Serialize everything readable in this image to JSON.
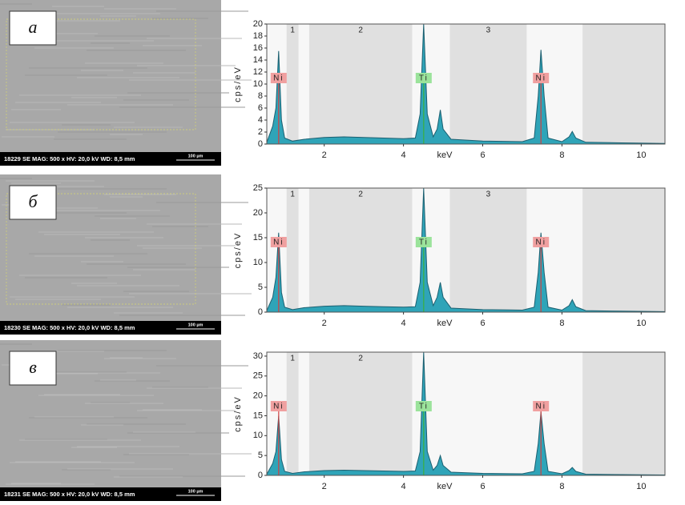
{
  "panels": [
    {
      "label": "а",
      "sem": {
        "caption": "18229 SE MAG: 500 x HV: 20,0 kV WD: 8,5 mm",
        "scale": "100 µm"
      },
      "chart_data": {
        "type": "area",
        "ylabel": "cps/eV",
        "xlabel": "keV",
        "xlim": [
          0.55,
          10.6
        ],
        "ylim": [
          0,
          20
        ],
        "xticks": [
          2,
          4,
          6,
          8,
          10
        ],
        "yticks": [
          0,
          2,
          4,
          6,
          8,
          10,
          12,
          14,
          16,
          18,
          20
        ],
        "color": "#2fa4b8",
        "regions": [
          {
            "label": "1",
            "from": 1.05,
            "to": 1.35
          },
          {
            "label": "2",
            "from": 1.62,
            "to": 4.22
          },
          {
            "label": "3",
            "from": 5.17,
            "to": 7.11
          },
          {
            "label": null,
            "from": 8.52,
            "to": 10.6
          }
        ],
        "peak_labels": [
          {
            "text": "Ni",
            "x": 0.85,
            "color": "#f0a0a0"
          },
          {
            "text": "Ti",
            "x": 4.51,
            "color": "#9be39b"
          },
          {
            "text": "Ni",
            "x": 7.47,
            "color": "#f0a0a0"
          }
        ],
        "x": [
          0.55,
          0.7,
          0.78,
          0.85,
          0.92,
          1.0,
          1.2,
          1.5,
          2.0,
          2.5,
          3.0,
          3.5,
          4.0,
          4.3,
          4.42,
          4.51,
          4.6,
          4.75,
          4.85,
          4.93,
          5.0,
          5.2,
          6.0,
          7.0,
          7.3,
          7.4,
          7.47,
          7.55,
          7.65,
          8.0,
          8.18,
          8.26,
          8.35,
          8.6,
          9.5,
          10.6
        ],
        "values": [
          0.3,
          3,
          6,
          15.5,
          4,
          1,
          0.5,
          0.8,
          1.1,
          1.2,
          1.1,
          1.0,
          0.9,
          1.0,
          5,
          20,
          5,
          1.2,
          2.5,
          5.7,
          2.5,
          0.8,
          0.5,
          0.4,
          1.0,
          8,
          15.7,
          8,
          1.0,
          0.4,
          1.2,
          2.1,
          1.0,
          0.3,
          0.2,
          0.1
        ]
      }
    },
    {
      "label": "б",
      "sem": {
        "caption": "18230 SE MAG: 500 x HV: 20,0 kV WD: 8,5 mm",
        "scale": "100 µm"
      },
      "chart_data": {
        "type": "area",
        "ylabel": "cps/eV",
        "xlabel": "keV",
        "xlim": [
          0.55,
          10.6
        ],
        "ylim": [
          0,
          25
        ],
        "xticks": [
          2,
          4,
          6,
          8,
          10
        ],
        "yticks": [
          0,
          5,
          10,
          15,
          20,
          25
        ],
        "color": "#2fa4b8",
        "regions": [
          {
            "label": "1",
            "from": 1.05,
            "to": 1.35
          },
          {
            "label": "2",
            "from": 1.62,
            "to": 4.22
          },
          {
            "label": "3",
            "from": 5.17,
            "to": 7.11
          },
          {
            "label": null,
            "from": 8.52,
            "to": 10.6
          }
        ],
        "peak_labels": [
          {
            "text": "Ni",
            "x": 0.85,
            "color": "#f0a0a0"
          },
          {
            "text": "Ti",
            "x": 4.51,
            "color": "#9be39b"
          },
          {
            "text": "Ni",
            "x": 7.47,
            "color": "#f0a0a0"
          }
        ],
        "x": [
          0.55,
          0.7,
          0.78,
          0.85,
          0.92,
          1.0,
          1.2,
          1.5,
          2.0,
          2.5,
          3.0,
          3.5,
          4.0,
          4.3,
          4.42,
          4.51,
          4.6,
          4.75,
          4.85,
          4.93,
          5.0,
          5.2,
          6.0,
          7.0,
          7.3,
          7.4,
          7.47,
          7.55,
          7.65,
          8.0,
          8.18,
          8.26,
          8.35,
          8.6,
          9.5,
          10.6
        ],
        "values": [
          0.3,
          3,
          7,
          16,
          4,
          1,
          0.5,
          0.9,
          1.2,
          1.3,
          1.2,
          1.1,
          1.0,
          1.1,
          6,
          25,
          6,
          1.3,
          3,
          6,
          3,
          0.8,
          0.5,
          0.4,
          1.0,
          8,
          16,
          8,
          1.0,
          0.4,
          1.3,
          2.5,
          1.1,
          0.3,
          0.2,
          0.1
        ]
      }
    },
    {
      "label": "в",
      "sem": {
        "caption": "18231 SE MAG: 500 x HV: 20,0 kV WD: 8,5 mm",
        "scale": "100 µm"
      },
      "chart_data": {
        "type": "area",
        "ylabel": "cps/eV",
        "xlabel": "keV",
        "xlim": [
          0.55,
          10.6
        ],
        "ylim": [
          0,
          31
        ],
        "xticks": [
          2,
          4,
          6,
          8,
          10
        ],
        "yticks": [
          0,
          5,
          10,
          15,
          20,
          25,
          30
        ],
        "color": "#2fa4b8",
        "regions": [
          {
            "label": "1",
            "from": 1.05,
            "to": 1.35
          },
          {
            "label": "2",
            "from": 1.62,
            "to": 4.22
          },
          {
            "label": null,
            "from": 8.52,
            "to": 10.6
          }
        ],
        "peak_labels": [
          {
            "text": "Ni",
            "x": 0.85,
            "color": "#f0a0a0"
          },
          {
            "text": "Ti",
            "x": 4.51,
            "color": "#9be39b"
          },
          {
            "text": "Ni",
            "x": 7.47,
            "color": "#f0a0a0"
          }
        ],
        "x": [
          0.55,
          0.7,
          0.78,
          0.85,
          0.92,
          1.0,
          1.2,
          1.5,
          2.0,
          2.5,
          3.0,
          3.5,
          4.0,
          4.3,
          4.42,
          4.51,
          4.6,
          4.75,
          4.85,
          4.93,
          5.0,
          5.2,
          6.0,
          7.0,
          7.3,
          7.4,
          7.47,
          7.55,
          7.65,
          8.0,
          8.18,
          8.26,
          8.35,
          8.6,
          9.5,
          10.6
        ],
        "values": [
          0.3,
          3,
          6,
          15,
          4,
          1,
          0.5,
          0.9,
          1.2,
          1.3,
          1.2,
          1.1,
          1.0,
          1.1,
          6,
          31,
          6,
          1.3,
          2.5,
          5,
          2.5,
          0.8,
          0.5,
          0.4,
          1.0,
          8,
          16,
          8,
          1.0,
          0.4,
          1.2,
          2,
          1.0,
          0.3,
          0.2,
          0.1
        ]
      }
    }
  ]
}
